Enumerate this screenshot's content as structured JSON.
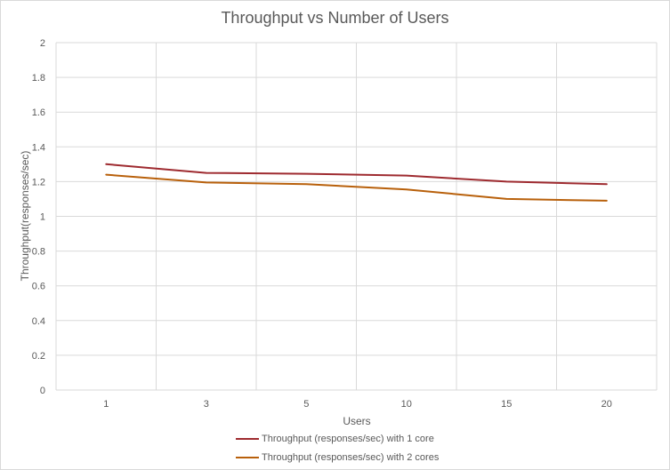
{
  "chart_data": {
    "type": "line",
    "title": "Throughput vs Number of Users",
    "xlabel": "Users",
    "ylabel": "Throughput(responses/sec)",
    "categories": [
      "1",
      "3",
      "5",
      "10",
      "15",
      "20"
    ],
    "ylim": [
      0,
      2
    ],
    "yticks": [
      "0",
      "0.2",
      "0.4",
      "0.6",
      "0.8",
      "1",
      "1.2",
      "1.4",
      "1.6",
      "1.8",
      "2"
    ],
    "grid": true,
    "legend_position": "bottom",
    "series": [
      {
        "name": "Throughput (responses/sec) with 1 core",
        "color": "#9e2a2f",
        "values": [
          1.3,
          1.25,
          1.245,
          1.235,
          1.2,
          1.185
        ]
      },
      {
        "name": "Throughput (responses/sec) with 2 cores",
        "color": "#b8600b",
        "values": [
          1.24,
          1.195,
          1.185,
          1.155,
          1.1,
          1.09
        ]
      }
    ]
  }
}
